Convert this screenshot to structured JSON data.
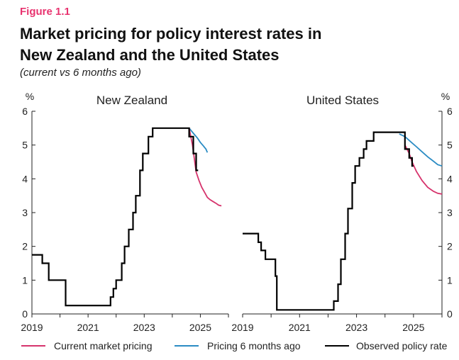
{
  "figure_label": "Figure 1.1",
  "title_line1": "Market pricing for policy interest rates in",
  "title_line2": "New Zealand and the United States",
  "subtitle": "(current vs 6 months ago)",
  "colors": {
    "current": "#d6336c",
    "six_months_ago": "#2b8cc4",
    "observed": "#000000",
    "axis": "#222222",
    "label_red": "#e8336f"
  },
  "chart_data": [
    {
      "type": "line",
      "title": "New Zealand",
      "ylabel": "%",
      "xlim": [
        2019.0,
        2026.0
      ],
      "ylim": [
        0,
        6
      ],
      "yticks": [
        "0",
        "1",
        "2",
        "3",
        "4",
        "5",
        "6"
      ],
      "xticks": [
        "2019",
        "2021",
        "2023",
        "2025"
      ],
      "series": [
        {
          "name": "Observed policy rate",
          "key": "observed",
          "x": [
            2019.0,
            2019.37,
            2019.37,
            2019.6,
            2019.6,
            2020.2,
            2020.2,
            2021.8,
            2021.8,
            2021.9,
            2021.9,
            2022.0,
            2022.0,
            2022.2,
            2022.2,
            2022.3,
            2022.3,
            2022.45,
            2022.45,
            2022.6,
            2022.6,
            2022.7,
            2022.7,
            2022.85,
            2022.85,
            2022.95,
            2022.95,
            2023.15,
            2023.15,
            2023.3,
            2023.3,
            2023.4,
            2023.4,
            2024.6,
            2024.6,
            2024.75,
            2024.75,
            2024.85,
            2024.85,
            2024.92
          ],
          "y": [
            1.75,
            1.75,
            1.5,
            1.5,
            1.0,
            1.0,
            0.25,
            0.25,
            0.5,
            0.5,
            0.75,
            0.75,
            1.0,
            1.0,
            1.5,
            1.5,
            2.0,
            2.0,
            2.5,
            2.5,
            3.0,
            3.0,
            3.5,
            3.5,
            4.25,
            4.25,
            4.75,
            4.75,
            5.25,
            5.25,
            5.5,
            5.5,
            5.5,
            5.5,
            5.25,
            5.25,
            4.75,
            4.75,
            4.25,
            4.25
          ]
        },
        {
          "name": "Pricing 6 months ago",
          "key": "six_months_ago",
          "x": [
            2024.6,
            2024.75,
            2024.9,
            2025.0,
            2025.1,
            2025.2,
            2025.25
          ],
          "y": [
            5.5,
            5.35,
            5.2,
            5.08,
            4.98,
            4.88,
            4.78
          ]
        },
        {
          "name": "Current market pricing",
          "key": "current",
          "x": [
            2024.6,
            2024.72,
            2024.85,
            2024.95,
            2025.05,
            2025.15,
            2025.25,
            2025.35,
            2025.45,
            2025.55,
            2025.65,
            2025.75
          ],
          "y": [
            5.5,
            5.0,
            4.2,
            3.95,
            3.75,
            3.6,
            3.45,
            3.38,
            3.33,
            3.28,
            3.22,
            3.2
          ]
        }
      ]
    },
    {
      "type": "line",
      "title": "United States",
      "ylabel": "%",
      "xlim": [
        2019.0,
        2026.0
      ],
      "ylim": [
        0,
        6
      ],
      "yticks": [
        "0",
        "1",
        "2",
        "3",
        "4",
        "5",
        "6"
      ],
      "xticks": [
        "2019",
        "2021",
        "2023",
        "2025"
      ],
      "series": [
        {
          "name": "Observed policy rate",
          "key": "observed",
          "x": [
            2019.0,
            2019.55,
            2019.55,
            2019.65,
            2019.65,
            2019.8,
            2019.8,
            2020.15,
            2020.15,
            2020.2,
            2020.2,
            2022.2,
            2022.2,
            2022.35,
            2022.35,
            2022.45,
            2022.45,
            2022.6,
            2022.6,
            2022.7,
            2022.7,
            2022.85,
            2022.85,
            2022.95,
            2022.95,
            2023.1,
            2023.1,
            2023.25,
            2023.25,
            2023.35,
            2023.35,
            2023.6,
            2023.6,
            2024.7,
            2024.7,
            2024.85,
            2024.85,
            2024.95,
            2024.95,
            2025.0
          ],
          "y": [
            2.38,
            2.38,
            2.12,
            2.12,
            1.88,
            1.88,
            1.62,
            1.62,
            1.12,
            1.12,
            0.12,
            0.12,
            0.38,
            0.38,
            0.88,
            0.88,
            1.62,
            1.62,
            2.38,
            2.38,
            3.12,
            3.12,
            3.88,
            3.88,
            4.38,
            4.38,
            4.62,
            4.62,
            4.88,
            4.88,
            5.12,
            5.12,
            5.38,
            5.38,
            4.88,
            4.88,
            4.62,
            4.62,
            4.38,
            4.38
          ]
        },
        {
          "name": "Pricing 6 months ago",
          "key": "six_months_ago",
          "x": [
            2024.5,
            2024.7,
            2024.9,
            2025.1,
            2025.3,
            2025.5,
            2025.7,
            2025.85,
            2026.0
          ],
          "y": [
            5.33,
            5.25,
            5.1,
            4.95,
            4.8,
            4.65,
            4.52,
            4.42,
            4.38
          ]
        },
        {
          "name": "Current market pricing",
          "key": "current",
          "x": [
            2024.7,
            2024.85,
            2024.95,
            2025.1,
            2025.3,
            2025.5,
            2025.7,
            2025.85,
            2026.0
          ],
          "y": [
            5.0,
            4.75,
            4.5,
            4.22,
            3.95,
            3.75,
            3.63,
            3.57,
            3.55
          ]
        }
      ]
    }
  ],
  "legend": [
    {
      "label": "Current market pricing",
      "key": "current"
    },
    {
      "label": "Pricing 6 months ago",
      "key": "six_months_ago"
    },
    {
      "label": "Observed policy rate",
      "key": "observed"
    }
  ]
}
